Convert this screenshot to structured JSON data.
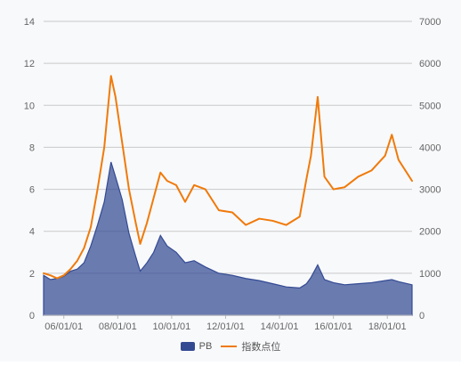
{
  "chart_data": {
    "type": "area",
    "x_ticks": [
      "06/01/01",
      "08/01/01",
      "10/01/01",
      "12/01/01",
      "14/01/01",
      "16/01/01",
      "18/01/01"
    ],
    "y_left_ticks": [
      "0",
      "2",
      "4",
      "6",
      "8",
      "10",
      "12",
      "14"
    ],
    "y_right_ticks": [
      "0",
      "1000",
      "2000",
      "3000",
      "4000",
      "5000",
      "6000",
      "7000"
    ],
    "y_left_range": [
      0,
      14
    ],
    "y_right_range": [
      0,
      7000
    ],
    "x_range": [
      "2005-04",
      "2018-12"
    ],
    "grid": true,
    "legend_position": "bottom-center",
    "colors": {
      "pb_fill": "#334a93",
      "index_line": "#f07a0a",
      "grid": "#c9c9c9"
    },
    "series": [
      {
        "name": "PB",
        "axis": "left",
        "kind": "area",
        "points": [
          [
            "2005-04",
            1.9
          ],
          [
            "2005-07",
            1.7
          ],
          [
            "2005-10",
            1.75
          ],
          [
            "2006-01",
            1.85
          ],
          [
            "2006-04",
            2.1
          ],
          [
            "2006-07",
            2.2
          ],
          [
            "2006-10",
            2.5
          ],
          [
            "2007-01",
            3.3
          ],
          [
            "2007-04",
            4.3
          ],
          [
            "2007-07",
            5.4
          ],
          [
            "2007-10",
            7.3
          ],
          [
            "2007-12",
            6.6
          ],
          [
            "2008-03",
            5.5
          ],
          [
            "2008-06",
            3.9
          ],
          [
            "2008-09",
            2.8
          ],
          [
            "2008-11",
            2.1
          ],
          [
            "2009-02",
            2.5
          ],
          [
            "2009-05",
            3.0
          ],
          [
            "2009-08",
            3.8
          ],
          [
            "2009-11",
            3.3
          ],
          [
            "2010-03",
            3.0
          ],
          [
            "2010-07",
            2.5
          ],
          [
            "2010-11",
            2.6
          ],
          [
            "2011-04",
            2.3
          ],
          [
            "2011-10",
            2.0
          ],
          [
            "2012-04",
            1.9
          ],
          [
            "2012-10",
            1.75
          ],
          [
            "2013-04",
            1.65
          ],
          [
            "2013-10",
            1.5
          ],
          [
            "2014-04",
            1.35
          ],
          [
            "2014-10",
            1.3
          ],
          [
            "2015-01",
            1.5
          ],
          [
            "2015-03",
            1.8
          ],
          [
            "2015-06",
            2.4
          ],
          [
            "2015-09",
            1.7
          ],
          [
            "2016-01",
            1.55
          ],
          [
            "2016-06",
            1.45
          ],
          [
            "2016-12",
            1.5
          ],
          [
            "2017-06",
            1.55
          ],
          [
            "2017-12",
            1.65
          ],
          [
            "2018-03",
            1.7
          ],
          [
            "2018-06",
            1.6
          ],
          [
            "2018-12",
            1.45
          ]
        ]
      },
      {
        "name": "指数点位",
        "axis": "right",
        "kind": "line",
        "points": [
          [
            "2005-04",
            1000
          ],
          [
            "2005-07",
            950
          ],
          [
            "2005-10",
            880
          ],
          [
            "2006-01",
            950
          ],
          [
            "2006-04",
            1100
          ],
          [
            "2006-07",
            1300
          ],
          [
            "2006-10",
            1600
          ],
          [
            "2007-01",
            2100
          ],
          [
            "2007-04",
            3000
          ],
          [
            "2007-07",
            4000
          ],
          [
            "2007-10",
            5700
          ],
          [
            "2007-12",
            5200
          ],
          [
            "2008-03",
            4100
          ],
          [
            "2008-06",
            3000
          ],
          [
            "2008-09",
            2200
          ],
          [
            "2008-11",
            1700
          ],
          [
            "2009-02",
            2200
          ],
          [
            "2009-05",
            2800
          ],
          [
            "2009-08",
            3400
          ],
          [
            "2009-11",
            3200
          ],
          [
            "2010-03",
            3100
          ],
          [
            "2010-07",
            2700
          ],
          [
            "2010-11",
            3100
          ],
          [
            "2011-04",
            3000
          ],
          [
            "2011-10",
            2500
          ],
          [
            "2012-04",
            2450
          ],
          [
            "2012-10",
            2150
          ],
          [
            "2013-04",
            2300
          ],
          [
            "2013-10",
            2250
          ],
          [
            "2014-04",
            2150
          ],
          [
            "2014-10",
            2350
          ],
          [
            "2015-01",
            3250
          ],
          [
            "2015-03",
            3800
          ],
          [
            "2015-06",
            5200
          ],
          [
            "2015-09",
            3300
          ],
          [
            "2016-01",
            3000
          ],
          [
            "2016-06",
            3050
          ],
          [
            "2016-12",
            3300
          ],
          [
            "2017-06",
            3450
          ],
          [
            "2017-12",
            3800
          ],
          [
            "2018-03",
            4300
          ],
          [
            "2018-06",
            3700
          ],
          [
            "2018-12",
            3200
          ]
        ]
      }
    ]
  }
}
